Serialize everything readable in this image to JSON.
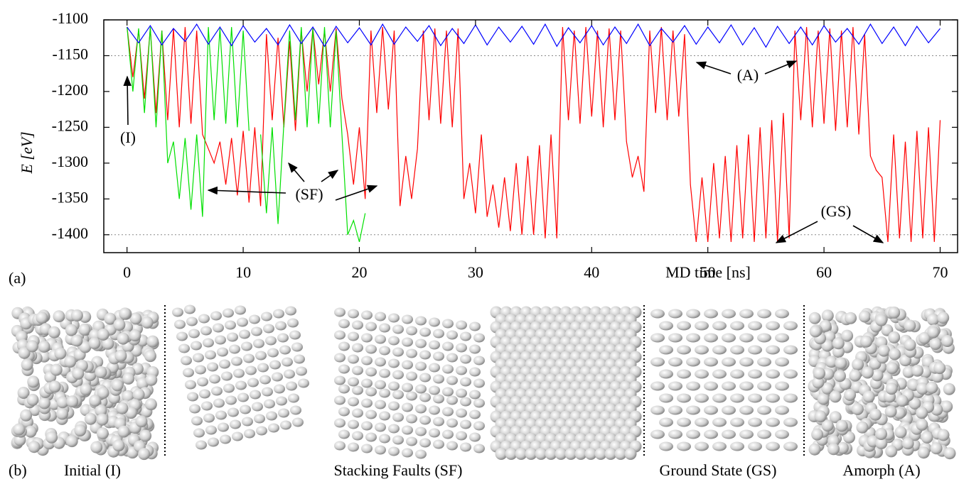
{
  "chart_data": {
    "type": "line",
    "xlabel": "MD time [ns]",
    "ylabel": "E [eV]",
    "xlim": [
      -2,
      71.5
    ],
    "ylim": [
      -1425,
      -1100
    ],
    "xticks": [
      0,
      10,
      20,
      30,
      40,
      50,
      60,
      70
    ],
    "yticks": [
      -1100,
      -1150,
      -1200,
      -1250,
      -1300,
      -1350,
      -1400
    ],
    "reference_lines": [
      -1150,
      -1400
    ],
    "panel_label": "(a)",
    "annotations": [
      "(I)",
      "(SF)",
      "(A)",
      "(GS)"
    ],
    "series": [
      {
        "color": "#ff0000",
        "x": [
          0,
          0.5,
          1,
          1.5,
          2,
          2.5,
          3,
          3.5,
          4,
          4.5,
          5,
          5.5,
          6,
          6.5,
          7,
          7.5,
          8,
          8.5,
          9,
          9.5,
          10,
          10.5,
          11,
          11.5,
          12,
          12.5,
          13,
          13.5,
          14,
          14.5,
          15,
          15.5,
          16,
          16.5,
          17,
          17.5,
          18,
          18.5,
          19,
          19.5,
          20,
          20.5,
          21,
          21.5,
          22,
          22.5,
          23,
          23.5,
          24,
          24.5,
          25,
          25.5,
          26,
          26.5,
          27,
          27.5,
          28,
          28.5,
          29,
          29.5,
          30,
          30.5,
          31,
          31.5,
          32,
          32.5,
          33,
          33.5,
          34,
          34.5,
          35,
          35.5,
          36,
          36.5,
          37,
          37.5,
          38,
          38.5,
          39,
          39.5,
          40,
          40.5,
          41,
          41.5,
          42,
          42.5,
          43,
          43.5,
          44,
          44.5,
          45,
          45.5,
          46,
          46.5,
          47,
          47.5,
          48,
          48.5,
          49,
          49.5,
          50,
          50.5,
          51,
          51.5,
          52,
          52.5,
          53,
          53.5,
          54,
          54.5,
          55,
          55.5,
          56,
          56.5,
          57,
          57.5,
          58,
          58.5,
          59,
          59.5,
          60,
          60.5,
          61,
          61.5,
          62,
          62.5,
          63,
          63.5,
          64,
          64.5,
          65,
          65.5,
          66,
          66.5,
          67,
          67.5,
          68,
          68.5,
          69,
          69.5,
          70
        ],
        "values": [
          -1110,
          -1180,
          -1115,
          -1210,
          -1112,
          -1230,
          -1115,
          -1240,
          -1112,
          -1250,
          -1110,
          -1245,
          -1115,
          -1260,
          -1280,
          -1300,
          -1270,
          -1330,
          -1265,
          -1345,
          -1255,
          -1355,
          -1250,
          -1360,
          -1120,
          -1240,
          -1125,
          -1250,
          -1130,
          -1255,
          -1115,
          -1200,
          -1112,
          -1190,
          -1115,
          -1200,
          -1112,
          -1210,
          -1260,
          -1330,
          -1250,
          -1350,
          -1115,
          -1230,
          -1110,
          -1225,
          -1115,
          -1360,
          -1290,
          -1350,
          -1280,
          -1115,
          -1240,
          -1112,
          -1245,
          -1115,
          -1250,
          -1112,
          -1350,
          -1300,
          -1370,
          -1260,
          -1375,
          -1330,
          -1390,
          -1320,
          -1395,
          -1300,
          -1400,
          -1290,
          -1400,
          -1275,
          -1405,
          -1260,
          -1405,
          -1110,
          -1240,
          -1115,
          -1245,
          -1110,
          -1235,
          -1115,
          -1250,
          -1112,
          -1240,
          -1115,
          -1270,
          -1320,
          -1290,
          -1340,
          -1115,
          -1230,
          -1110,
          -1240,
          -1115,
          -1235,
          -1120,
          -1330,
          -1410,
          -1320,
          -1410,
          -1300,
          -1405,
          -1290,
          -1410,
          -1275,
          -1405,
          -1260,
          -1410,
          -1250,
          -1405,
          -1240,
          -1410,
          -1230,
          -1405,
          -1115,
          -1240,
          -1110,
          -1250,
          -1115,
          -1245,
          -1112,
          -1255,
          -1115,
          -1250,
          -1110,
          -1260,
          -1120,
          -1290,
          -1310,
          -1320,
          -1410,
          -1260,
          -1405,
          -1270,
          -1410,
          -1255,
          -1405,
          -1250,
          -1410,
          -1240
        ]
      },
      {
        "color": "#00e000",
        "x": [
          0,
          0.5,
          1,
          1.5,
          2,
          2.5,
          3,
          3.5,
          4,
          4.5,
          5,
          5.5,
          6,
          6.5,
          7,
          7.5,
          8,
          8.5,
          9,
          9.5,
          10,
          10.5,
          11,
          11.5,
          12,
          12.5,
          13,
          13.5,
          14,
          14.5,
          15,
          15.5,
          16,
          16.5,
          17,
          17.5,
          18,
          18.5,
          19,
          19.5,
          20,
          20.5
        ],
        "values": [
          -1110,
          -1200,
          -1112,
          -1230,
          -1110,
          -1250,
          -1115,
          -1300,
          -1270,
          -1350,
          -1265,
          -1365,
          -1260,
          -1375,
          -1110,
          -1240,
          -1112,
          -1245,
          -1110,
          -1250,
          -1115,
          -1255,
          null,
          -1260,
          -1370,
          -1250,
          -1385,
          -1245,
          -1115,
          -1240,
          -1110,
          -1250,
          -1112,
          -1245,
          -1110,
          -1250,
          -1115,
          -1260,
          -1400,
          -1380,
          -1410,
          -1370
        ]
      },
      {
        "color": "#0000ff",
        "x": [
          0,
          1,
          2,
          3,
          4,
          5,
          6,
          7,
          8,
          9,
          10,
          11,
          12,
          13,
          14,
          15,
          16,
          17,
          18,
          19,
          20,
          21,
          22,
          23,
          24,
          25,
          26,
          27,
          28,
          29,
          30,
          31,
          32,
          33,
          34,
          35,
          36,
          37,
          38,
          39,
          40,
          41,
          42,
          43,
          44,
          45,
          46,
          47,
          48,
          49,
          50,
          51,
          52,
          53,
          54,
          55,
          56,
          57,
          58,
          59,
          60,
          61,
          62,
          63,
          64,
          65,
          66,
          67,
          68,
          69,
          70
        ],
        "values": [
          -1110,
          -1132,
          -1108,
          -1135,
          -1112,
          -1130,
          -1106,
          -1134,
          -1110,
          -1136,
          -1108,
          -1131,
          -1112,
          -1135,
          -1107,
          -1133,
          -1110,
          -1137,
          -1109,
          -1132,
          -1111,
          -1135,
          -1106,
          -1134,
          -1110,
          -1130,
          -1108,
          -1136,
          -1112,
          -1133,
          -1107,
          -1135,
          -1110,
          -1131,
          -1109,
          -1134,
          -1106,
          -1137,
          -1111,
          -1132,
          -1108,
          -1135,
          -1110,
          -1133,
          -1106,
          -1136,
          -1112,
          -1131,
          -1108,
          -1134,
          -1110,
          -1132,
          -1107,
          -1135,
          -1111,
          -1138,
          -1109,
          -1133,
          -1110,
          -1135,
          -1108,
          -1131,
          -1112,
          -1134,
          -1106,
          -1133,
          -1110,
          -1136,
          -1109,
          -1132,
          -1112
        ]
      }
    ]
  },
  "panel_b": {
    "label": "(b)",
    "captions": [
      "Initial (I)",
      "Stacking Faults (SF)",
      "Ground State (GS)",
      "Amorph (A)"
    ]
  }
}
